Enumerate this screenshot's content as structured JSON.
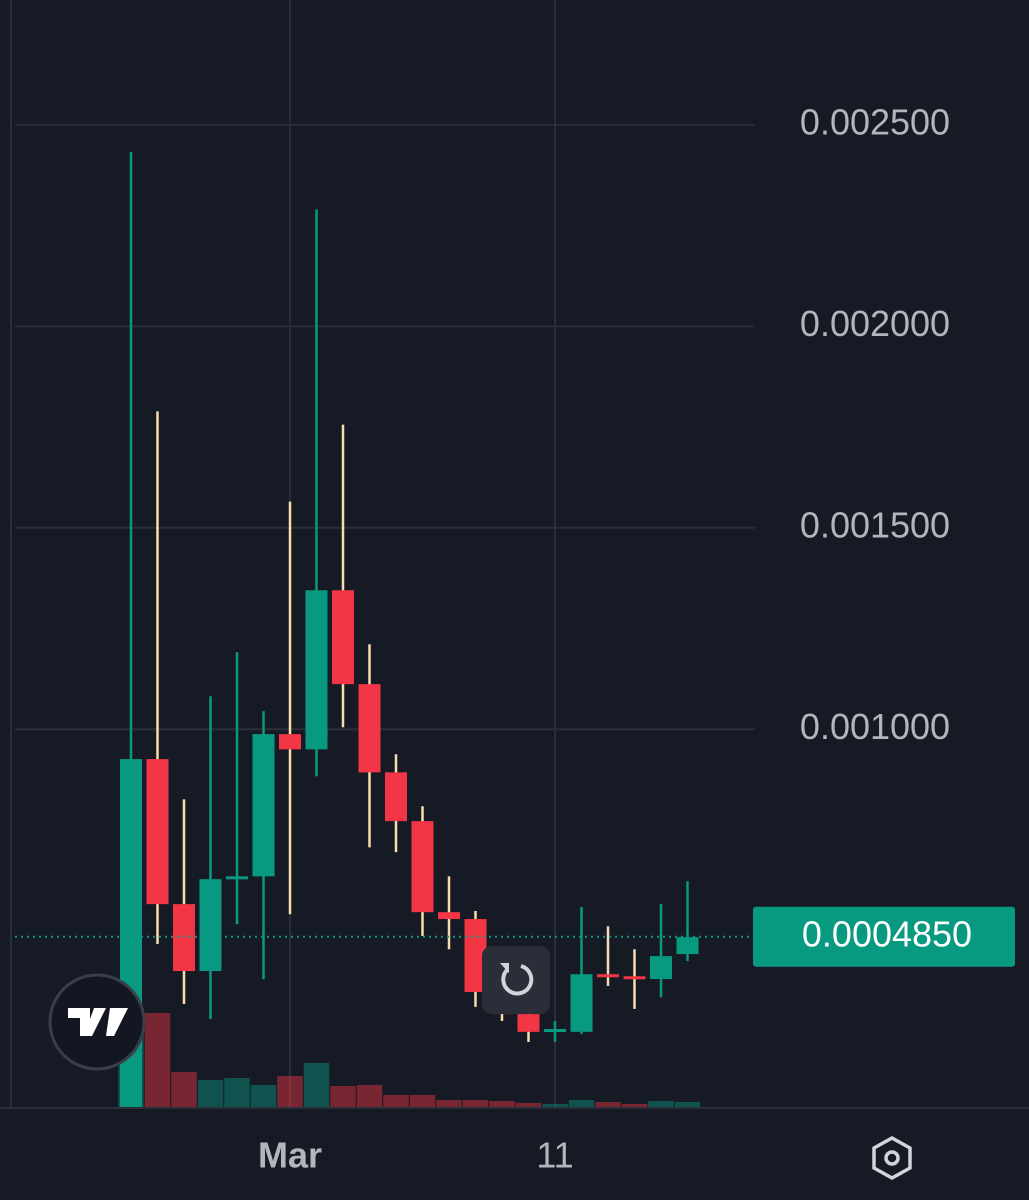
{
  "chart_data": {
    "type": "candlestick",
    "categories": [
      null,
      null,
      null,
      null,
      null,
      null,
      "Mar",
      null,
      null,
      null,
      null,
      null,
      null,
      null,
      null,
      null,
      "11",
      null,
      null,
      null,
      null,
      null
    ],
    "open": [
      6e-05,
      0.000926,
      0.000566,
      0.0004,
      0.000628,
      0.000635,
      0.000988,
      0.00095,
      0.001345,
      0.001112,
      0.000893,
      0.000772,
      0.000546,
      0.000529,
      0.000348,
      0.000293,
      0.000251,
      0.000249,
      0.000392,
      0.000387,
      0.00038,
      0.000442
    ],
    "high": [
      0.002433,
      0.001789,
      0.000826,
      0.001082,
      0.001191,
      0.001045,
      0.001565,
      0.00229,
      0.001756,
      0.001211,
      0.000938,
      0.000809,
      0.000635,
      0.000549,
      0.000368,
      0.000306,
      0.000276,
      0.000559,
      0.000511,
      0.000454,
      0.000566,
      0.000623
    ],
    "low": [
      6e-05,
      0.000467,
      0.000318,
      0.000281,
      0.000516,
      0.00038,
      0.000541,
      0.000883,
      0.001005,
      0.000707,
      0.000695,
      0.000487,
      0.000454,
      0.000311,
      0.000276,
      0.000224,
      0.000224,
      0.000244,
      0.000363,
      0.000306,
      0.000335,
      0.000425
    ],
    "close": [
      0.000926,
      0.000566,
      0.0004,
      0.000628,
      0.000635,
      0.000988,
      0.00095,
      0.001345,
      0.001112,
      0.000893,
      0.000772,
      0.000546,
      0.000529,
      0.000348,
      0.000293,
      0.000249,
      0.000256,
      0.000392,
      0.000387,
      0.000382,
      0.000437,
      0.000484
    ],
    "volume": [
      100,
      95,
      36,
      28,
      30,
      23,
      32,
      45,
      22,
      23,
      13,
      13,
      8,
      8,
      7,
      5,
      4,
      8,
      6,
      4,
      7,
      6
    ],
    "up_color": "#089981",
    "down_color": "#f23645",
    "down_wick_color": "#f7dcb0",
    "ylim": [
      6e-05,
      0.00281
    ],
    "yticks": [
      {
        "value": 0.001,
        "label": "0.001000"
      },
      {
        "value": 0.0015,
        "label": "0.001500"
      },
      {
        "value": 0.002,
        "label": "0.002000"
      },
      {
        "value": 0.0025,
        "label": "0.002500"
      }
    ],
    "last_price": {
      "value": 0.000485,
      "label": "0.0004850"
    },
    "grid": true
  }
}
